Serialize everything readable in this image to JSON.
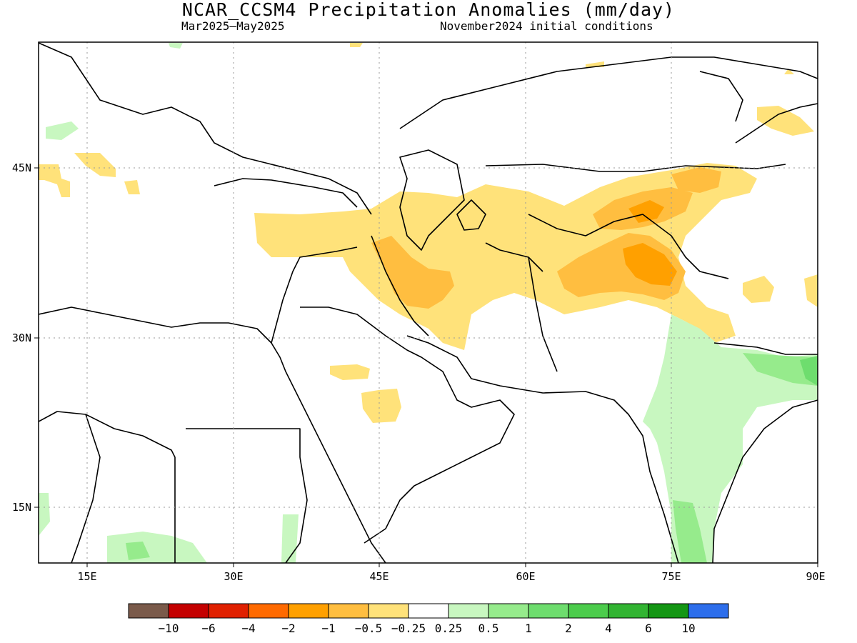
{
  "title": "NCAR_CCSM4 Precipitation Anomalies (mm/day)",
  "subtitle_period": "Mar2025–May2025",
  "subtitle_init": "November2024 initial conditions",
  "map": {
    "lon_range": [
      10,
      90
    ],
    "lat_range": [
      10,
      56
    ],
    "grid": "dotted",
    "lon_ticks": [
      {
        "value": 15,
        "label": "15E"
      },
      {
        "value": 30,
        "label": "30E"
      },
      {
        "value": 45,
        "label": "45E"
      },
      {
        "value": 60,
        "label": "60E"
      },
      {
        "value": 75,
        "label": "75E"
      },
      {
        "value": 90,
        "label": "90E"
      }
    ],
    "lat_ticks": [
      {
        "value": 45,
        "label": "45N"
      },
      {
        "value": 30,
        "label": "30N"
      },
      {
        "value": 15,
        "label": "15N"
      }
    ]
  },
  "colorbar": {
    "colors": [
      "#7a5a4a",
      "#c40000",
      "#e02000",
      "#ff6a00",
      "#ffa000",
      "#ffbe40",
      "#ffe27a",
      "#ffffff",
      "#c8f7c0",
      "#96eb8c",
      "#6edd6e",
      "#4ccc4c",
      "#32b432",
      "#149614",
      "#2d6eeb"
    ],
    "labels": [
      "−10",
      "−6",
      "−4",
      "−2",
      "−1",
      "−0.5",
      "−0.25",
      "0.25",
      "0.5",
      "1",
      "2",
      "4",
      "6",
      "10"
    ]
  },
  "anomaly_regions": [
    {
      "name": "iran-afghan-dry",
      "level": "-0.5 to -0.25",
      "color": "#ffe27a"
    },
    {
      "name": "iraq-iran-core",
      "level": "-1 to -0.5",
      "color": "#ffbe40"
    },
    {
      "name": "kashmir-core",
      "level": "-2 to -1",
      "color": "#ffa000"
    },
    {
      "name": "india-wet",
      "level": "0.25 to 0.5",
      "color": "#c8f7c0"
    },
    {
      "name": "himalaya-wet",
      "level": "0.5 to 1",
      "color": "#96eb8c"
    }
  ]
}
